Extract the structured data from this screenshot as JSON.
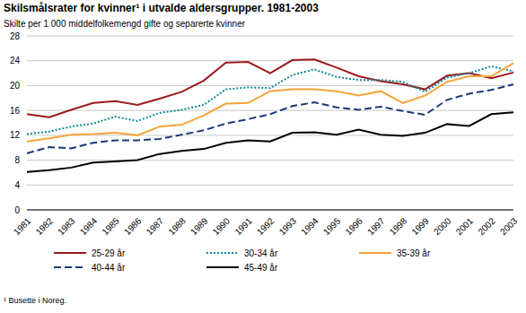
{
  "chart_data": {
    "type": "line",
    "title": "Skilsmålsrater for kvinner¹ i utvalde aldersgrupper. 1981-2003",
    "subtitle": "Skilte per 1 000 middelfolkemengd gifte og separerte kvinner",
    "footnote": "¹ Busette i Noreg.",
    "categories": [
      "1981",
      "1982",
      "1983",
      "1984",
      "1985",
      "1986",
      "1987",
      "1988",
      "1989",
      "1990",
      "1991",
      "1992",
      "1993",
      "1994",
      "1995",
      "1996",
      "1997",
      "1998",
      "1999",
      "2000",
      "2001",
      "2002",
      "2003"
    ],
    "series": [
      {
        "name": "25-29 år",
        "color": "#9b1b1e",
        "line_style": "solid",
        "values": [
          15.4,
          14.9,
          16.1,
          17.2,
          17.5,
          16.9,
          17.9,
          19.0,
          20.8,
          23.7,
          23.8,
          22.0,
          24.1,
          24.2,
          22.9,
          21.5,
          20.7,
          20.2,
          19.4,
          21.6,
          22.0,
          21.2,
          22.1
        ]
      },
      {
        "name": "30-34 år",
        "color": "#0f8b96",
        "line_style": "dotted",
        "values": [
          12.2,
          12.6,
          13.4,
          13.9,
          15.0,
          14.3,
          15.6,
          16.1,
          16.9,
          19.4,
          19.7,
          19.6,
          21.7,
          22.6,
          21.4,
          20.9,
          20.9,
          20.6,
          19.0,
          21.3,
          22.0,
          23.1,
          22.3
        ]
      },
      {
        "name": "35-39 år",
        "color": "#f5a43a",
        "line_style": "solid",
        "values": [
          11.0,
          11.5,
          12.1,
          12.2,
          12.4,
          12.0,
          13.4,
          13.7,
          15.2,
          17.1,
          17.2,
          19.1,
          19.4,
          19.4,
          19.1,
          18.4,
          19.1,
          17.2,
          18.4,
          20.6,
          21.5,
          21.5,
          23.6
        ]
      },
      {
        "name": "40-44 år",
        "color": "#1a3a7a",
        "line_style": "dashed",
        "values": [
          9.1,
          10.1,
          9.9,
          10.8,
          11.2,
          11.2,
          11.4,
          12.1,
          12.8,
          13.9,
          14.6,
          15.4,
          16.7,
          17.3,
          16.5,
          16.1,
          16.6,
          15.9,
          15.3,
          17.7,
          18.7,
          19.3,
          20.2
        ]
      },
      {
        "name": "45-49 år",
        "color": "#000000",
        "line_style": "solid",
        "values": [
          6.1,
          6.4,
          6.8,
          7.6,
          7.8,
          8.0,
          9.0,
          9.5,
          9.8,
          10.8,
          11.2,
          11.0,
          12.4,
          12.5,
          12.1,
          12.9,
          12.1,
          11.9,
          12.4,
          13.8,
          13.5,
          15.4,
          15.7
        ]
      }
    ],
    "ylim": [
      0,
      28
    ],
    "yticks": [
      0,
      4,
      8,
      12,
      16,
      20,
      24,
      28
    ],
    "grid": true,
    "legend": "bottom"
  }
}
